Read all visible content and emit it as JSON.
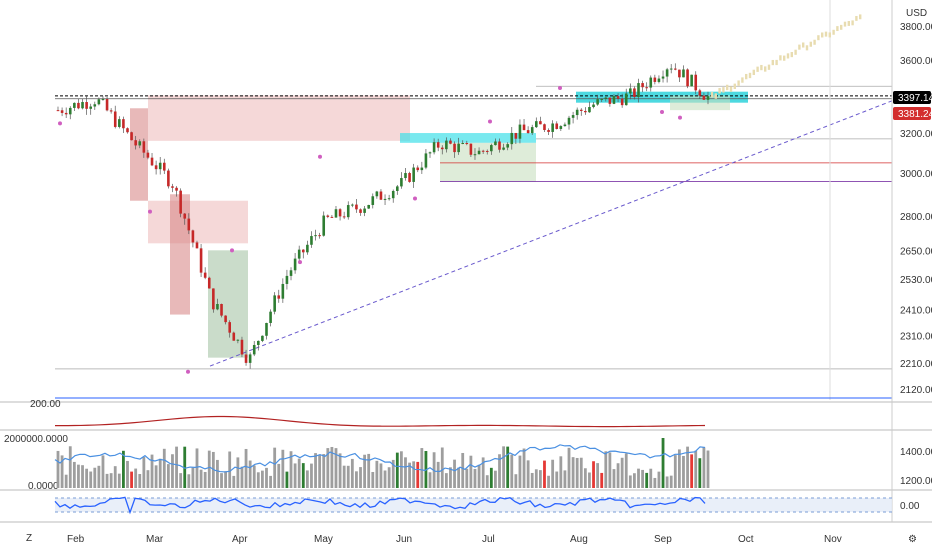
{
  "header": {
    "currency": "USD"
  },
  "price_badges": [
    {
      "label": "3397.14",
      "bg": "#000000",
      "fg": "#ffffff"
    },
    {
      "label": "3381.24",
      "bg": "#d32f2f",
      "fg": "#ffffff"
    }
  ],
  "panels": {
    "indicator1_label": "200.00",
    "volume_label": "2000000.0000",
    "volume_zero": "0.0000",
    "osc_zero": "0.00"
  },
  "footer": {
    "z_label": "Z"
  },
  "chart_data": {
    "type": "candlestick",
    "y_axis": {
      "ticks": [
        "3800.00",
        "3600.00",
        "3400.00",
        "3200.00",
        "3000.00",
        "2800.00",
        "2650.00",
        "2530.00",
        "2410.00",
        "2310.00",
        "2210.00",
        "2120.00"
      ],
      "scale": "log",
      "ylim": [
        2100,
        3900
      ]
    },
    "x_axis": {
      "months": [
        "Feb",
        "Mar",
        "Apr",
        "May",
        "Jun",
        "Jul",
        "Aug",
        "Sep",
        "Oct",
        "Nov"
      ]
    },
    "price_path": [
      {
        "month": "Feb",
        "value": 3320
      },
      {
        "month": "Feb",
        "value": 3380
      },
      {
        "month": "Mar",
        "value": 3150
      },
      {
        "month": "Mar",
        "value": 2950
      },
      {
        "month": "Mar",
        "value": 2450
      },
      {
        "month": "Mar",
        "value": 2220
      },
      {
        "month": "Apr",
        "value": 2550
      },
      {
        "month": "Apr",
        "value": 2780
      },
      {
        "month": "May",
        "value": 2850
      },
      {
        "month": "May",
        "value": 2950
      },
      {
        "month": "Jun",
        "value": 3150
      },
      {
        "month": "Jun",
        "value": 3100
      },
      {
        "month": "Jul",
        "value": 3200
      },
      {
        "month": "Jul",
        "value": 3250
      },
      {
        "month": "Aug",
        "value": 3350
      },
      {
        "month": "Aug",
        "value": 3400
      },
      {
        "month": "Sep",
        "value": 3580
      },
      {
        "month": "Sep",
        "value": 3390
      }
    ],
    "projection": {
      "from": "Sep",
      "to": "Nov",
      "start": 3390,
      "end": 3850
    },
    "horizontal_levels": [
      3397.14,
      3381.24,
      3170,
      3050,
      2960,
      2190
    ],
    "right_axis_volume": [
      "1400.00",
      "1200.00"
    ],
    "series": [
      {
        "values": [
          3320,
          3380,
          3150,
          2950,
          2450,
          2220,
          2550,
          2780,
          2850,
          2950,
          3150,
          3100,
          3200,
          3250,
          3350,
          3400,
          3580,
          3390
        ]
      }
    ]
  }
}
